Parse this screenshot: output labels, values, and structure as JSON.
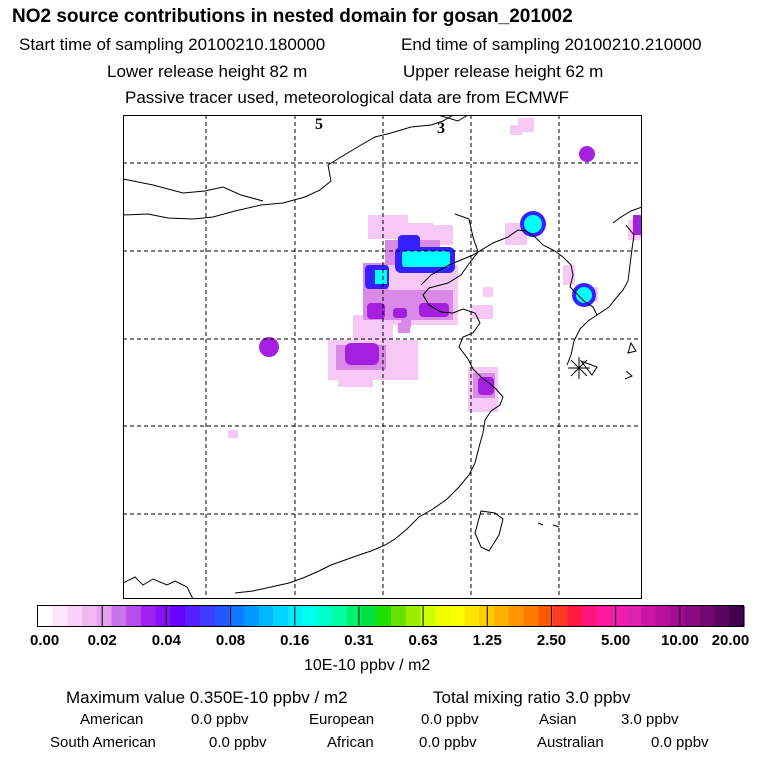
{
  "title": "NO2 source contributions in nested domain for gosan_201002",
  "start_label": "Start time of sampling 20100210.180000",
  "end_label": "End time of sampling 20100210.210000",
  "lower_label": "Lower release height   82 m",
  "upper_label": "Upper release height   62 m",
  "tracer_note": "Passive tracer used, meteorological data are from ECMWF",
  "map": {
    "marker_5": "5",
    "marker_3": "3",
    "colors": {
      "coast": "#000000",
      "grid": "#000000",
      "cyan": "#00ffff",
      "blue": "#3322ff",
      "purple": "#aa22dd",
      "pink": "#f2b0f2"
    }
  },
  "colorbar": {
    "ticks": [
      "0.00",
      "0.02",
      "0.04",
      "0.08",
      "0.16",
      "0.31",
      "0.63",
      "1.25",
      "2.50",
      "5.00",
      "10.00",
      "20.00"
    ],
    "colors": [
      "#ffffff",
      "#fde6fd",
      "#f8d0f8",
      "#f0b8f0",
      "#e7a0f0",
      "#c974ef",
      "#b74cee",
      "#a020f0",
      "#8a10f5",
      "#6a00ff",
      "#5522ff",
      "#3f3bff",
      "#2458ff",
      "#1078ff",
      "#0098ff",
      "#00b8ff",
      "#00d4ff",
      "#00eeff",
      "#00ffee",
      "#00ffcc",
      "#00ffa0",
      "#00f070",
      "#00e040",
      "#22dd00",
      "#66e000",
      "#99ee00",
      "#ccff00",
      "#eeff00",
      "#ffff00",
      "#ffe600",
      "#ffcc00",
      "#ffb000",
      "#ff9600",
      "#ff7a00",
      "#ff5a00",
      "#ff3a20",
      "#ff1a40",
      "#ff1480",
      "#ff1aa0",
      "#f01eb0",
      "#e022b0",
      "#cc14a6",
      "#b8109c",
      "#a20c92",
      "#8a0a82",
      "#72086f",
      "#5a0660",
      "#440050"
    ],
    "units": "10E-10 ppbv / m2"
  },
  "summary": {
    "max_label": "Maximum value  0.350E-10 ppbv / m2",
    "total_label": "Total mixing ratio       3.0 ppbv",
    "regions": [
      {
        "name": "American",
        "value": "0.0 ppbv"
      },
      {
        "name": "European",
        "value": "0.0 ppbv"
      },
      {
        "name": "Asian",
        "value": "3.0 ppbv"
      },
      {
        "name": "South American",
        "value": "0.0 ppbv"
      },
      {
        "name": "African",
        "value": "0.0 ppbv"
      },
      {
        "name": "Australian",
        "value": "0.0 ppbv"
      }
    ]
  }
}
